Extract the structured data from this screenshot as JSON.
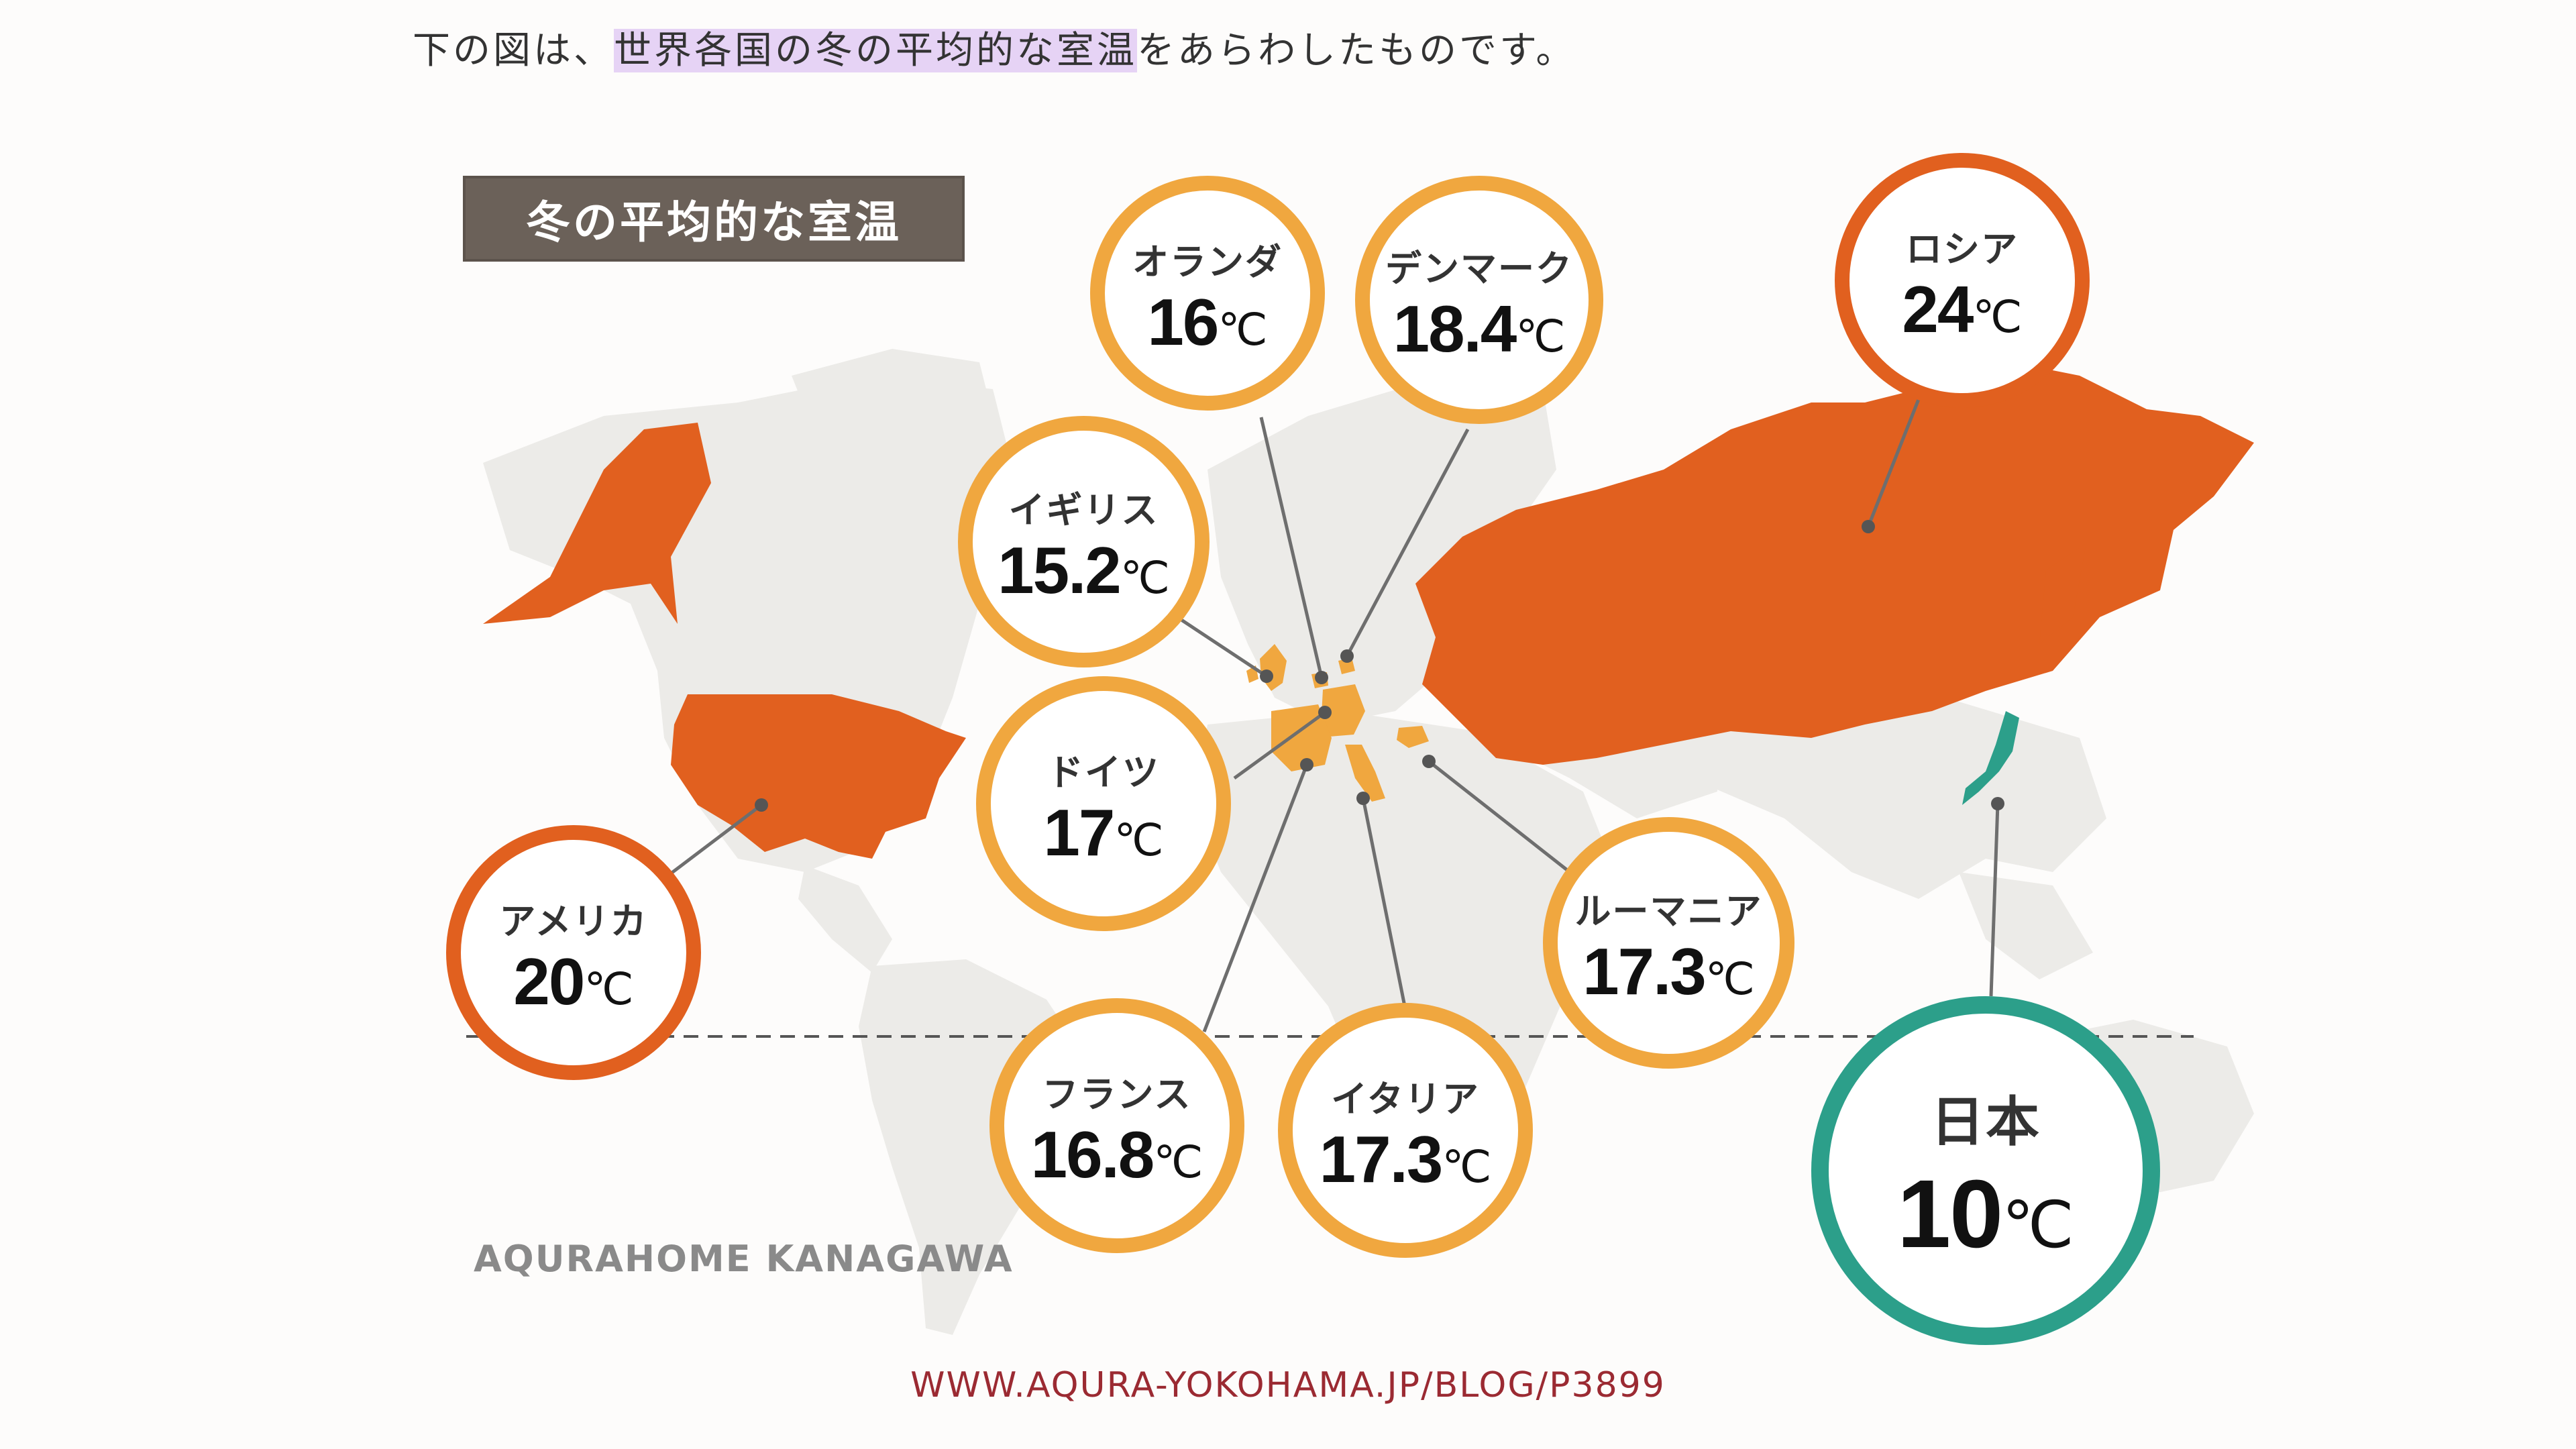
{
  "caption": {
    "before": "下の図は、",
    "highlight": "世界各国の冬の平均的な室温",
    "after": "をあらわしたものです。"
  },
  "map_title": "冬の平均的な室温",
  "unit": "℃",
  "countries": [
    {
      "id": "netherlands",
      "name": "オランダ",
      "value": "16",
      "style": "yellow"
    },
    {
      "id": "denmark",
      "name": "デンマーク",
      "value": "18.4",
      "style": "yellow"
    },
    {
      "id": "uk",
      "name": "イギリス",
      "value": "15.2",
      "style": "yellow"
    },
    {
      "id": "germany",
      "name": "ドイツ",
      "value": "17",
      "style": "yellow"
    },
    {
      "id": "russia",
      "name": "ロシア",
      "value": "24",
      "style": "orange"
    },
    {
      "id": "usa",
      "name": "アメリカ",
      "value": "20",
      "style": "orange"
    },
    {
      "id": "romania",
      "name": "ルーマニア",
      "value": "17.3",
      "style": "yellow"
    },
    {
      "id": "france",
      "name": "フランス",
      "value": "16.8",
      "style": "yellow"
    },
    {
      "id": "italy",
      "name": "イタリア",
      "value": "17.3",
      "style": "yellow"
    },
    {
      "id": "japan",
      "name": "日本",
      "value": "10",
      "style": "green"
    }
  ],
  "credit": "AQURAHOME KANAGAWA",
  "source_url": "WWW.AQURA-YOKOHAMA.JP/BLOG/P3899",
  "colors": {
    "land_base": "#ecebe8",
    "highlight_orange": "#e1601f",
    "highlight_yellow": "#f0a73f",
    "japan_green": "#2c9f8a",
    "caption_highlight": "#e6d3f5"
  }
}
